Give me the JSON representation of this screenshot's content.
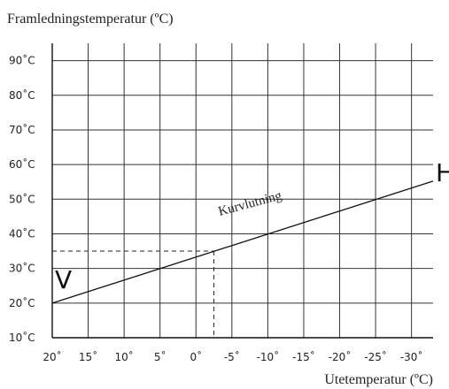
{
  "chart_data": {
    "type": "line",
    "ylabel": "Framledningstemperatur (ºC)",
    "xlabel": "Utetemperatur (ºC)",
    "x_ticks": [
      20,
      15,
      10,
      5,
      0,
      -5,
      -10,
      -15,
      -20,
      -25,
      -30
    ],
    "x_tick_labels": [
      "20˚",
      "15˚",
      "10˚",
      "5˚",
      "0˚",
      "-5˚",
      "-10˚",
      "-15˚",
      "-20˚",
      "-25˚",
      "-30˚"
    ],
    "y_ticks": [
      10,
      20,
      30,
      40,
      50,
      60,
      70,
      80,
      90
    ],
    "y_tick_labels": [
      "10˚C",
      "20˚C",
      "30˚C",
      "40˚C",
      "50˚C",
      "60˚C",
      "70˚C",
      "80˚C",
      "90˚C"
    ],
    "xlim": [
      20,
      -33
    ],
    "ylim": [
      10,
      95
    ],
    "grid": true,
    "series": [
      {
        "name": "Kurvlutning",
        "x": [
          20,
          -33
        ],
        "y": [
          20,
          55.2
        ]
      }
    ],
    "reference_point": {
      "x": -2.5,
      "y": 35
    },
    "annotations": {
      "curve_label": "Kurvlutning",
      "v_marker": "V",
      "h_marker": "H"
    }
  }
}
